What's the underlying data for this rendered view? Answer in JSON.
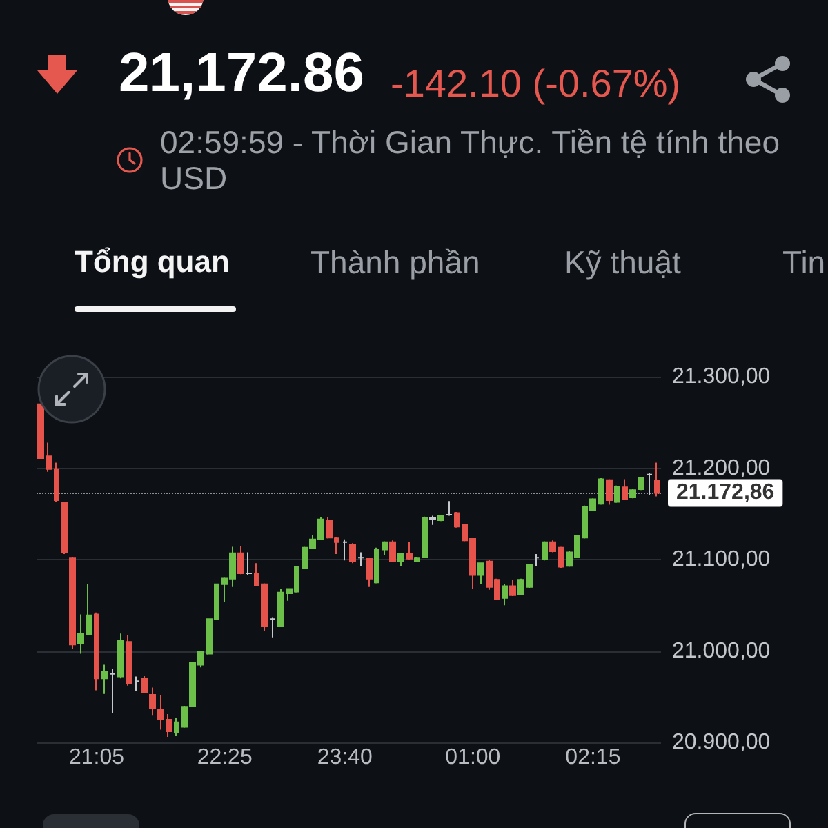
{
  "chart_data": {
    "type": "candlestick",
    "title": "21,172.86",
    "subtitle": "-142.10 (-0.67%)",
    "annotations": [
      "02:59:59 - Thời Gian Thực. Tiền tệ tính theo USD",
      "Tổng quan",
      "Thành phần",
      "Kỹ thuật",
      "Tin"
    ],
    "categories": [
      null,
      null,
      null,
      null,
      null,
      null,
      null,
      "21:05",
      null,
      null,
      null,
      null,
      null,
      null,
      null,
      null,
      null,
      null,
      null,
      null,
      null,
      null,
      null,
      "22:25",
      null,
      null,
      null,
      null,
      null,
      null,
      null,
      null,
      null,
      null,
      null,
      null,
      null,
      null,
      "23:40",
      null,
      null,
      null,
      null,
      null,
      null,
      null,
      null,
      null,
      null,
      null,
      null,
      null,
      null,
      null,
      "01:00",
      null,
      null,
      null,
      null,
      null,
      null,
      null,
      null,
      null,
      null,
      null,
      null,
      null,
      null,
      "02:15",
      null,
      null,
      null,
      null,
      null,
      null,
      null,
      null
    ],
    "ohlc": [
      [
        21270,
        21270,
        21211,
        21211
      ],
      [
        21213,
        21228,
        21196,
        21199
      ],
      [
        21199,
        21206,
        21163,
        21165
      ],
      [
        21162,
        21163,
        21106,
        21108
      ],
      [
        21102,
        21103,
        21002,
        21007
      ],
      [
        21008,
        21040,
        20997,
        21019
      ],
      [
        21018,
        21073,
        21017,
        21039
      ],
      [
        21040,
        21042,
        20957,
        20970
      ],
      [
        20970,
        20985,
        20953,
        20977
      ],
      [
        20975,
        20980,
        20932,
        20975
      ],
      [
        20972,
        21019,
        20970,
        21011
      ],
      [
        21010,
        21017,
        20962,
        20965
      ],
      [
        20967,
        20972,
        20956,
        20967
      ],
      [
        20970,
        20973,
        20954,
        20955
      ],
      [
        20952,
        20960,
        20930,
        20937
      ],
      [
        20936,
        20952,
        20914,
        20925
      ],
      [
        20925,
        20931,
        20906,
        20912
      ],
      [
        20911,
        20927,
        20907,
        20922
      ],
      [
        20917,
        20940,
        20916,
        20939
      ],
      [
        20940,
        20988,
        20939,
        20987
      ],
      [
        20985,
        20999,
        20982,
        20999
      ],
      [
        20997,
        21035,
        20996,
        21035
      ],
      [
        21035,
        21073,
        21034,
        21073
      ],
      [
        21073,
        21081,
        21054,
        21080
      ],
      [
        21079,
        21114,
        21070,
        21107
      ],
      [
        21107,
        21115,
        21084,
        21085
      ],
      [
        21085,
        21108,
        21083,
        21085
      ],
      [
        21085,
        21096,
        21071,
        21072
      ],
      [
        21073,
        21074,
        21022,
        21027
      ],
      [
        21035,
        21037,
        21015,
        21035
      ],
      [
        21027,
        21068,
        21026,
        21064
      ],
      [
        21063,
        21068,
        21055,
        21068
      ],
      [
        21065,
        21093,
        21064,
        21092
      ],
      [
        21091,
        21114,
        21090,
        21113
      ],
      [
        21112,
        21127,
        21112,
        21122
      ],
      [
        21122,
        21146,
        21122,
        21144
      ],
      [
        21143,
        21146,
        21123,
        21124
      ],
      [
        21124,
        21125,
        21106,
        21119
      ],
      [
        21119,
        21122,
        21099,
        21119
      ],
      [
        21116,
        21118,
        21096,
        21098
      ],
      [
        21102,
        21108,
        21093,
        21102
      ],
      [
        21101,
        21102,
        21070,
        21079
      ],
      [
        21075,
        21113,
        21074,
        21111
      ],
      [
        21111,
        21120,
        21105,
        21119
      ],
      [
        21119,
        21121,
        21097,
        21098
      ],
      [
        21098,
        21107,
        21093,
        21106
      ],
      [
        21106,
        21119,
        21100,
        21101
      ],
      [
        21098,
        21103,
        21097,
        21102
      ],
      [
        21103,
        21147,
        21102,
        21146
      ],
      [
        21144,
        21148,
        21138,
        21146
      ],
      [
        21143,
        21149,
        21142,
        21148
      ],
      [
        21149,
        21164,
        21148,
        21149
      ],
      [
        21151,
        21152,
        21135,
        21136
      ],
      [
        21138,
        21139,
        21120,
        21121
      ],
      [
        21123,
        21124,
        21068,
        21083
      ],
      [
        21083,
        21096,
        21073,
        21096
      ],
      [
        21098,
        21100,
        21067,
        21070
      ],
      [
        21078,
        21079,
        21056,
        21057
      ],
      [
        21058,
        21073,
        21050,
        21071
      ],
      [
        21071,
        21078,
        21060,
        21061
      ],
      [
        21062,
        21079,
        21061,
        21078
      ],
      [
        21070,
        21095,
        21069,
        21094
      ],
      [
        21102,
        21106,
        21093,
        21102
      ],
      [
        21100,
        21120,
        21099,
        21119
      ],
      [
        21119,
        21121,
        21108,
        21109
      ],
      [
        21113,
        21114,
        21091,
        21092
      ],
      [
        21093,
        21109,
        21092,
        21108
      ],
      [
        21103,
        21127,
        21102,
        21126
      ],
      [
        21124,
        21159,
        21123,
        21158
      ],
      [
        21154,
        21167,
        21153,
        21166
      ],
      [
        21161,
        21189,
        21160,
        21188
      ],
      [
        21187,
        21188,
        21160,
        21165
      ],
      [
        21163,
        21181,
        21162,
        21180
      ],
      [
        21179,
        21188,
        21165,
        21166
      ],
      [
        21168,
        21177,
        21167,
        21176
      ],
      [
        21177,
        21190,
        21176,
        21189
      ],
      [
        21193,
        21195,
        21171,
        21193
      ],
      [
        21186,
        21206,
        21169,
        21172.86
      ]
    ],
    "colors": [
      "#e5534b",
      "#e5534b",
      "#e5534b",
      "#e5534b",
      "#e5534b",
      "#6cc04a",
      "#6cc04a",
      "#e5534b",
      "#6cc04a",
      "#c5c8cc",
      "#6cc04a",
      "#e5534b",
      "#c5c8cc",
      "#e5534b",
      "#e5534b",
      "#e5534b",
      "#e5534b",
      "#6cc04a",
      "#6cc04a",
      "#6cc04a",
      "#6cc04a",
      "#6cc04a",
      "#6cc04a",
      "#6cc04a",
      "#6cc04a",
      "#e5534b",
      "#c5c8cc",
      "#e5534b",
      "#e5534b",
      "#c5c8cc",
      "#6cc04a",
      "#6cc04a",
      "#6cc04a",
      "#6cc04a",
      "#6cc04a",
      "#6cc04a",
      "#e5534b",
      "#e5534b",
      "#c5c8cc",
      "#e5534b",
      "#c5c8cc",
      "#e5534b",
      "#6cc04a",
      "#6cc04a",
      "#e5534b",
      "#6cc04a",
      "#e5534b",
      "#6cc04a",
      "#6cc04a",
      "#c5c8cc",
      "#6cc04a",
      "#c5c8cc",
      "#e5534b",
      "#e5534b",
      "#e5534b",
      "#6cc04a",
      "#e5534b",
      "#e5534b",
      "#6cc04a",
      "#e5534b",
      "#6cc04a",
      "#6cc04a",
      "#c5c8cc",
      "#6cc04a",
      "#e5534b",
      "#e5534b",
      "#6cc04a",
      "#6cc04a",
      "#6cc04a",
      "#6cc04a",
      "#6cc04a",
      "#e5534b",
      "#6cc04a",
      "#e5534b",
      "#6cc04a",
      "#6cc04a",
      "#c5c8cc",
      "#e5534b"
    ],
    "ylim": [
      20900,
      21300
    ],
    "yticks": [
      {
        "value": 20900,
        "label": "20.900,00"
      },
      {
        "value": 21000,
        "label": "21.000,00"
      },
      {
        "value": 21100,
        "label": "21.100,00"
      },
      {
        "value": 21200,
        "label": "21.200,00"
      },
      {
        "value": 21300,
        "label": "21.300,00"
      }
    ],
    "grid": "y",
    "ref_lines": [
      {
        "axis": "y",
        "value": 21172.86,
        "label": "21.172,86",
        "line_style": "dotted",
        "color": "#8b9096"
      }
    ]
  }
}
